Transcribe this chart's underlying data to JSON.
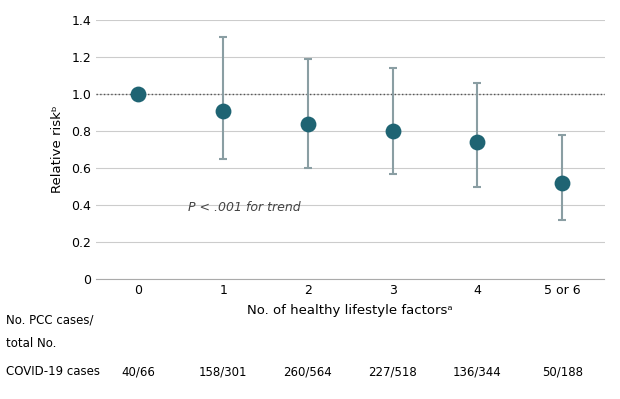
{
  "x_labels": [
    "0",
    "1",
    "2",
    "3",
    "4",
    "5 or 6"
  ],
  "x_positions": [
    0,
    1,
    2,
    3,
    4,
    5
  ],
  "y_values": [
    1.0,
    0.91,
    0.84,
    0.8,
    0.74,
    0.52
  ],
  "y_lower": [
    1.0,
    0.65,
    0.6,
    0.57,
    0.5,
    0.32
  ],
  "y_upper": [
    1.0,
    1.31,
    1.19,
    1.14,
    1.06,
    0.78
  ],
  "marker_color": "#1f6473",
  "error_color": "#8a9ea3",
  "dot_size": 130,
  "xlabel": "No. of healthy lifestyle factorsᵃ",
  "ylabel": "Relative riskᵇ",
  "ylim": [
    0,
    1.4
  ],
  "yticks": [
    0,
    0.2,
    0.4,
    0.6,
    0.8,
    1.0,
    1.2,
    1.4
  ],
  "dotted_line_y": 1.0,
  "annotation": "P < .001 for trend",
  "background_color": "#ffffff",
  "grid_color": "#cccccc",
  "table_label_lines": [
    "No. PCC cases/",
    "total No.",
    "COVID-19 cases"
  ],
  "table_values": [
    "40/66",
    "158/301",
    "260/564",
    "227/518",
    "136/344",
    "50/188"
  ]
}
